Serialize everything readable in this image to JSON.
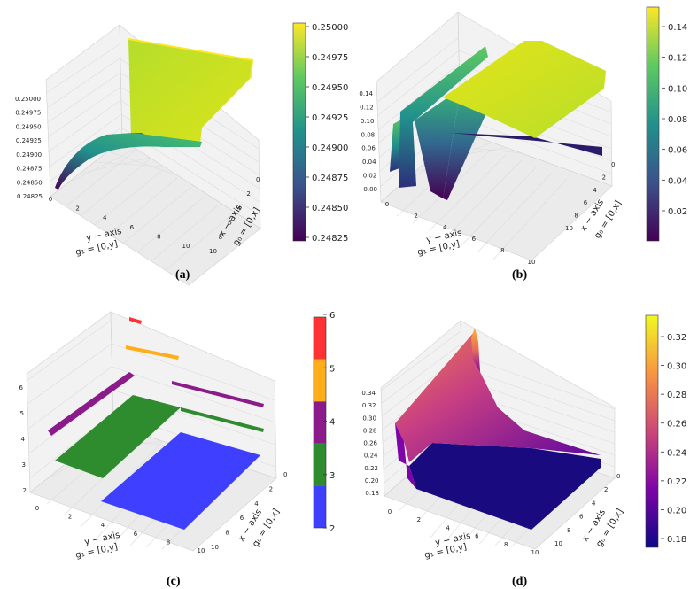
{
  "colors": {
    "blue": "#3f3fff",
    "green": "#2e8b2e",
    "purple": "#8b1a8b",
    "orange": "#ffae1a",
    "red": "#ff3333"
  },
  "chart_data": [
    {
      "type": "surface",
      "panel": "a",
      "caption": "(a)",
      "xlabel": [
        "x − axis",
        "g₀ = [0,x]"
      ],
      "ylabel": [
        "y − axis",
        "g₁ = [0,y]"
      ],
      "x_ticks": [
        "0",
        "2",
        "4",
        "6",
        "8",
        "10"
      ],
      "y_ticks": [
        "0",
        "2",
        "4",
        "6",
        "8",
        "10"
      ],
      "z_ticks": [
        "0.24825",
        "0.24850",
        "0.24875",
        "0.24900",
        "0.24925",
        "0.24950",
        "0.24975",
        "0.25000"
      ],
      "colorbar_ticks": [
        "0.24825",
        "0.24850",
        "0.24875",
        "0.24900",
        "0.24925",
        "0.24950",
        "0.24975",
        "0.25000"
      ],
      "zlim": [
        0.24825,
        0.25
      ],
      "colormap": "viridis"
    },
    {
      "type": "surface",
      "panel": "b",
      "caption": "(b)",
      "xlabel": [
        "x − axis",
        "g₀ = [0,x]"
      ],
      "ylabel": [
        "y − axis",
        "g₁ = [0,y]"
      ],
      "x_ticks": [
        "0",
        "2",
        "4",
        "6",
        "8",
        "10"
      ],
      "y_ticks": [
        "0",
        "2",
        "4",
        "6",
        "8",
        "10"
      ],
      "z_ticks": [
        "0.00",
        "0.02",
        "0.04",
        "0.06",
        "0.08",
        "0.10",
        "0.12",
        "0.14"
      ],
      "colorbar_ticks": [
        "0.02",
        "0.04",
        "0.06",
        "0.08",
        "0.10",
        "0.12",
        "0.14"
      ],
      "zlim": [
        0,
        0.15
      ],
      "colormap": "viridis"
    },
    {
      "type": "surface",
      "panel": "c",
      "caption": "(c)",
      "xlabel": [
        "x − axis",
        "g₀ = [0,x]"
      ],
      "ylabel": [
        "y − axis",
        "g₁ = [0,y]"
      ],
      "x_ticks": [
        "0",
        "2",
        "4",
        "6",
        "8",
        "10"
      ],
      "y_ticks": [
        "0",
        "2",
        "4",
        "6",
        "8",
        "10"
      ],
      "z_ticks": [
        "2",
        "3",
        "4",
        "5",
        "6"
      ],
      "colorbar_ticks": [
        "2",
        "3",
        "4",
        "5",
        "6"
      ],
      "zlim": [
        2,
        6
      ],
      "levels": [
        2,
        3,
        4,
        5,
        6
      ],
      "colormap": "discrete"
    },
    {
      "type": "surface",
      "panel": "d",
      "caption": "(d)",
      "xlabel": [
        "x − axis",
        "g₀ = [0,x]"
      ],
      "ylabel": [
        "y − axis",
        "g₁ = [0,y]"
      ],
      "x_ticks": [
        "0",
        "2",
        "4",
        "6",
        "8",
        "10"
      ],
      "y_ticks": [
        "0",
        "2",
        "4",
        "6",
        "8",
        "10"
      ],
      "z_ticks": [
        "0.18",
        "0.20",
        "0.22",
        "0.24",
        "0.26",
        "0.28",
        "0.30",
        "0.32",
        "0.34"
      ],
      "colorbar_ticks": [
        "0.18",
        "0.20",
        "0.22",
        "0.24",
        "0.26",
        "0.28",
        "0.30",
        "0.32"
      ],
      "zlim": [
        0.17,
        0.34
      ],
      "colormap": "plasma"
    }
  ]
}
